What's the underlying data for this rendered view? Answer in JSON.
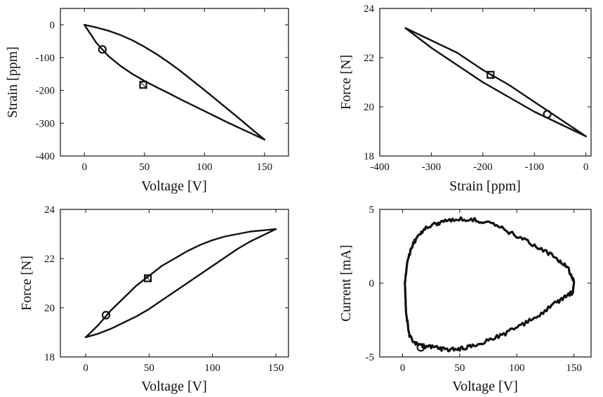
{
  "chart_data": [
    {
      "type": "line",
      "xlabel": "Voltage [V]",
      "ylabel": "Strain [ppm]",
      "xlim": [
        -20,
        170
      ],
      "ylim": [
        -400,
        50
      ],
      "xticks": [
        0,
        50,
        100,
        150
      ],
      "yticks": [
        -400,
        -300,
        -200,
        -100,
        0
      ],
      "xtick_labels": [
        "0",
        "50",
        "100",
        "150"
      ],
      "ytick_labels": [
        "-400",
        "-300",
        "-200",
        "-100",
        "0"
      ],
      "grid": false,
      "series": [
        {
          "x": [
            0,
            10,
            20,
            30,
            40,
            50,
            60,
            70,
            80,
            90,
            100,
            110,
            120,
            130,
            140,
            150
          ],
          "y": [
            0,
            -8,
            -18,
            -31,
            -47,
            -67,
            -89,
            -114,
            -141,
            -170,
            -199,
            -229,
            -259,
            -289,
            -320,
            -350
          ]
        },
        {
          "x": [
            150,
            140,
            130,
            120,
            110,
            100,
            90,
            80,
            70,
            60,
            50,
            40,
            30,
            20,
            10,
            0
          ],
          "y": [
            -350,
            -333,
            -316,
            -299,
            -281,
            -263,
            -245,
            -227,
            -208,
            -190,
            -171,
            -150,
            -125,
            -95,
            -55,
            0
          ]
        }
      ],
      "markers": [
        {
          "shape": "circle",
          "x": 15,
          "y": -75
        },
        {
          "shape": "square",
          "x": 49,
          "y": -183
        }
      ]
    },
    {
      "type": "line",
      "xlabel": "Strain [ppm]",
      "ylabel": "Force [N]",
      "xlim": [
        -400,
        10
      ],
      "ylim": [
        18,
        24
      ],
      "xticks": [
        -400,
        -300,
        -200,
        -100,
        0
      ],
      "yticks": [
        18,
        20,
        22,
        24
      ],
      "xtick_labels": [
        "-400",
        "-300",
        "-200",
        "-100",
        "0"
      ],
      "ytick_labels": [
        "18",
        "20",
        "22",
        "24"
      ],
      "grid": false,
      "series": [
        {
          "x": [
            0,
            -50,
            -100,
            -150,
            -200,
            -250,
            -300,
            -350
          ],
          "y": [
            18.8,
            19.3,
            19.8,
            20.4,
            21.0,
            21.7,
            22.4,
            23.2
          ]
        },
        {
          "x": [
            -350,
            -300,
            -250,
            -200,
            -150,
            -100,
            -50,
            0
          ],
          "y": [
            23.2,
            22.7,
            22.2,
            21.5,
            20.9,
            20.2,
            19.5,
            18.8
          ]
        }
      ],
      "markers": [
        {
          "shape": "circle",
          "x": -75,
          "y": 19.7
        },
        {
          "shape": "square",
          "x": -185,
          "y": 21.3
        }
      ]
    },
    {
      "type": "line",
      "xlabel": "Voltage [V]",
      "ylabel": "Force [N]",
      "xlim": [
        -20,
        160
      ],
      "ylim": [
        18,
        24
      ],
      "xticks": [
        0,
        50,
        100,
        150
      ],
      "yticks": [
        18,
        20,
        22,
        24
      ],
      "xtick_labels": [
        "0",
        "50",
        "100",
        "150"
      ],
      "ytick_labels": [
        "18",
        "20",
        "22",
        "24"
      ],
      "grid": false,
      "series": [
        {
          "x": [
            0,
            10,
            20,
            30,
            40,
            50,
            60,
            70,
            80,
            90,
            100,
            110,
            120,
            130,
            140,
            150
          ],
          "y": [
            18.8,
            19.3,
            19.9,
            20.4,
            20.9,
            21.3,
            21.7,
            22.0,
            22.3,
            22.55,
            22.75,
            22.9,
            23.0,
            23.1,
            23.15,
            23.2
          ]
        },
        {
          "x": [
            150,
            140,
            130,
            120,
            110,
            100,
            90,
            80,
            70,
            60,
            50,
            40,
            30,
            20,
            10,
            0
          ],
          "y": [
            23.2,
            22.95,
            22.7,
            22.4,
            22.05,
            21.7,
            21.35,
            21.0,
            20.65,
            20.3,
            19.95,
            19.65,
            19.4,
            19.15,
            18.95,
            18.8
          ]
        }
      ],
      "markers": [
        {
          "shape": "circle",
          "x": 16,
          "y": 19.7
        },
        {
          "shape": "square",
          "x": 49,
          "y": 21.2
        }
      ]
    },
    {
      "type": "line",
      "xlabel": "Voltage [V]",
      "ylabel": "Current  [mA]",
      "xlim": [
        -20,
        165
      ],
      "ylim": [
        -5,
        5
      ],
      "xticks": [
        0,
        50,
        100,
        150
      ],
      "yticks": [
        -5,
        0,
        5
      ],
      "xtick_labels": [
        "0",
        "50",
        "100",
        "150"
      ],
      "ytick_labels": [
        "-5",
        "0",
        "5"
      ],
      "grid": false,
      "series": [
        {
          "x": [
            2,
            4,
            8,
            14,
            22,
            32,
            45,
            60,
            75,
            90,
            105,
            120,
            135,
            145,
            150,
            149,
            145,
            135,
            120,
            105,
            90,
            75,
            60,
            50,
            40,
            30,
            20,
            12,
            6,
            3,
            2
          ],
          "y": [
            0,
            1.4,
            2.5,
            3.3,
            3.8,
            4.1,
            4.3,
            4.35,
            4.1,
            3.6,
            3.0,
            2.4,
            1.7,
            1.0,
            0.1,
            -0.6,
            -0.8,
            -1.3,
            -2.1,
            -2.8,
            -3.4,
            -3.9,
            -4.3,
            -4.45,
            -4.5,
            -4.4,
            -4.3,
            -4.1,
            -3.6,
            -2.0,
            0
          ]
        }
      ],
      "markers": [
        {
          "shape": "circle",
          "x": 16,
          "y": -4.35
        }
      ]
    }
  ]
}
